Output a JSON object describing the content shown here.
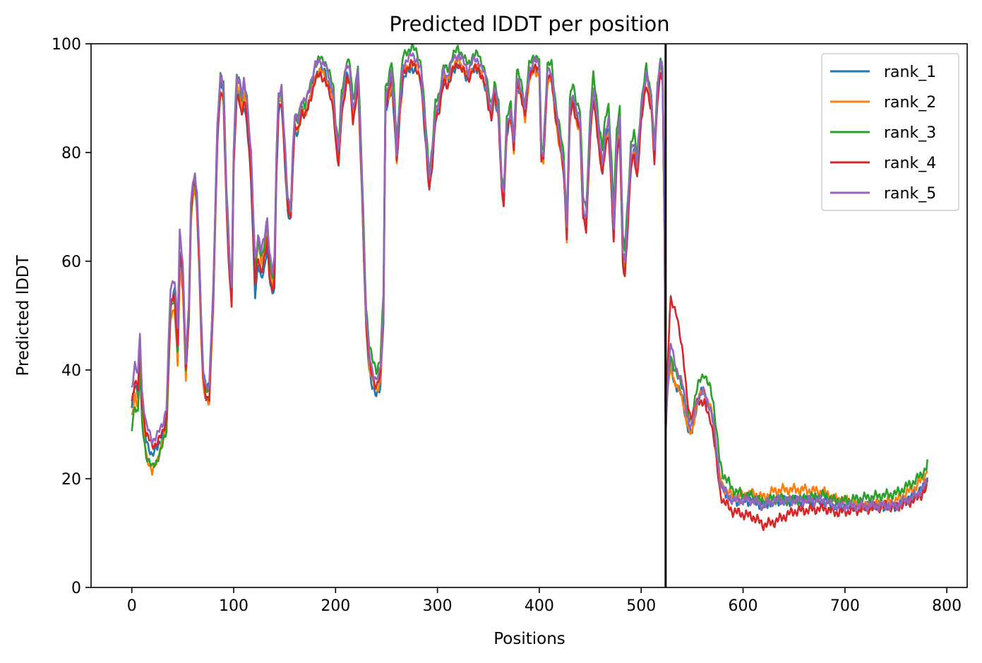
{
  "chart_data": {
    "type": "line",
    "title": "Predicted lDDT per position",
    "xlabel": "Positions",
    "ylabel": "Predicted lDDT",
    "xlim": [
      -40,
      820
    ],
    "ylim": [
      0,
      100
    ],
    "xticks": [
      0,
      100,
      200,
      300,
      400,
      500,
      600,
      700,
      800
    ],
    "yticks": [
      0,
      20,
      40,
      60,
      80,
      100
    ],
    "grid": false,
    "legend_position": "top-right",
    "vline": {
      "x": 524,
      "color": "#000000"
    },
    "keypoints": [
      [
        0,
        37
      ],
      [
        3,
        41
      ],
      [
        6,
        39
      ],
      [
        8,
        47
      ],
      [
        10,
        36
      ],
      [
        14,
        30
      ],
      [
        20,
        27
      ],
      [
        25,
        28
      ],
      [
        30,
        30
      ],
      [
        34,
        33
      ],
      [
        38,
        55
      ],
      [
        42,
        57
      ],
      [
        45,
        48
      ],
      [
        47,
        65
      ],
      [
        50,
        60
      ],
      [
        53,
        42
      ],
      [
        56,
        52
      ],
      [
        58,
        70
      ],
      [
        60,
        75
      ],
      [
        62,
        76
      ],
      [
        64,
        72
      ],
      [
        66,
        62
      ],
      [
        68,
        50
      ],
      [
        70,
        40
      ],
      [
        73,
        37
      ],
      [
        76,
        37
      ],
      [
        80,
        55
      ],
      [
        84,
        85
      ],
      [
        87,
        94
      ],
      [
        90,
        92
      ],
      [
        93,
        72
      ],
      [
        96,
        60
      ],
      [
        98,
        55
      ],
      [
        100,
        80
      ],
      [
        103,
        94
      ],
      [
        106,
        93
      ],
      [
        108,
        90
      ],
      [
        110,
        93
      ],
      [
        113,
        90
      ],
      [
        117,
        80
      ],
      [
        121,
        60
      ],
      [
        124,
        65
      ],
      [
        127,
        62
      ],
      [
        130,
        64
      ],
      [
        133,
        68
      ],
      [
        135,
        62
      ],
      [
        138,
        58
      ],
      [
        140,
        60
      ],
      [
        142,
        80
      ],
      [
        144,
        91
      ],
      [
        147,
        92
      ],
      [
        150,
        82
      ],
      [
        153,
        72
      ],
      [
        156,
        70
      ],
      [
        158,
        80
      ],
      [
        160,
        87
      ],
      [
        163,
        86
      ],
      [
        167,
        90
      ],
      [
        170,
        89
      ],
      [
        175,
        92
      ],
      [
        180,
        96
      ],
      [
        185,
        97
      ],
      [
        190,
        96
      ],
      [
        195,
        93
      ],
      [
        198,
        91
      ],
      [
        200,
        85
      ],
      [
        203,
        80
      ],
      [
        206,
        90
      ],
      [
        208,
        92
      ],
      [
        211,
        96
      ],
      [
        214,
        95
      ],
      [
        217,
        88
      ],
      [
        219,
        90
      ],
      [
        222,
        95
      ],
      [
        225,
        80
      ],
      [
        228,
        62
      ],
      [
        230,
        50
      ],
      [
        233,
        43
      ],
      [
        236,
        40
      ],
      [
        240,
        38
      ],
      [
        244,
        40
      ],
      [
        247,
        52
      ],
      [
        249,
        90
      ],
      [
        252,
        92
      ],
      [
        255,
        95
      ],
      [
        258,
        88
      ],
      [
        260,
        80
      ],
      [
        263,
        89
      ],
      [
        266,
        96
      ],
      [
        270,
        97
      ],
      [
        275,
        98
      ],
      [
        280,
        97
      ],
      [
        284,
        95
      ],
      [
        288,
        85
      ],
      [
        292,
        75
      ],
      [
        295,
        80
      ],
      [
        298,
        88
      ],
      [
        302,
        90
      ],
      [
        306,
        95
      ],
      [
        310,
        94
      ],
      [
        315,
        97
      ],
      [
        320,
        98
      ],
      [
        325,
        97
      ],
      [
        330,
        95
      ],
      [
        335,
        97
      ],
      [
        340,
        97
      ],
      [
        345,
        95
      ],
      [
        348,
        93
      ],
      [
        350,
        90
      ],
      [
        353,
        88
      ],
      [
        356,
        92
      ],
      [
        360,
        88
      ],
      [
        363,
        75
      ],
      [
        365,
        72
      ],
      [
        368,
        85
      ],
      [
        372,
        88
      ],
      [
        375,
        82
      ],
      [
        378,
        94
      ],
      [
        382,
        92
      ],
      [
        386,
        88
      ],
      [
        390,
        95
      ],
      [
        395,
        97
      ],
      [
        400,
        96
      ],
      [
        402,
        80
      ],
      [
        404,
        80
      ],
      [
        408,
        95
      ],
      [
        412,
        95
      ],
      [
        416,
        88
      ],
      [
        420,
        83
      ],
      [
        424,
        78
      ],
      [
        427,
        66
      ],
      [
        430,
        88
      ],
      [
        433,
        91
      ],
      [
        436,
        88
      ],
      [
        440,
        86
      ],
      [
        443,
        70
      ],
      [
        446,
        68
      ],
      [
        450,
        85
      ],
      [
        453,
        92
      ],
      [
        456,
        88
      ],
      [
        459,
        82
      ],
      [
        462,
        78
      ],
      [
        465,
        84
      ],
      [
        468,
        86
      ],
      [
        471,
        75
      ],
      [
        473,
        66
      ],
      [
        476,
        82
      ],
      [
        479,
        86
      ],
      [
        482,
        62
      ],
      [
        484,
        60
      ],
      [
        487,
        70
      ],
      [
        490,
        80
      ],
      [
        493,
        82
      ],
      [
        496,
        78
      ],
      [
        500,
        88
      ],
      [
        505,
        95
      ],
      [
        510,
        90
      ],
      [
        513,
        80
      ],
      [
        516,
        92
      ],
      [
        519,
        97
      ],
      [
        521,
        95
      ],
      [
        523,
        65
      ],
      [
        524,
        30
      ],
      [
        526,
        38
      ],
      [
        529,
        45
      ],
      [
        532,
        42
      ],
      [
        535,
        40
      ],
      [
        538,
        39
      ],
      [
        541,
        37
      ],
      [
        544,
        33
      ],
      [
        547,
        30
      ],
      [
        550,
        30
      ],
      [
        553,
        33
      ],
      [
        556,
        35
      ],
      [
        559,
        36
      ],
      [
        562,
        36
      ],
      [
        565,
        34
      ],
      [
        568,
        33
      ],
      [
        571,
        30
      ],
      [
        574,
        25
      ],
      [
        577,
        20
      ],
      [
        580,
        18
      ],
      [
        585,
        17
      ],
      [
        590,
        16
      ],
      [
        595,
        16
      ],
      [
        600,
        16
      ],
      [
        610,
        16
      ],
      [
        620,
        15
      ],
      [
        630,
        16
      ],
      [
        640,
        16
      ],
      [
        650,
        16
      ],
      [
        660,
        16
      ],
      [
        670,
        16
      ],
      [
        680,
        16
      ],
      [
        690,
        15
      ],
      [
        700,
        15
      ],
      [
        710,
        15
      ],
      [
        720,
        15
      ],
      [
        730,
        15
      ],
      [
        740,
        15
      ],
      [
        750,
        15
      ],
      [
        760,
        16
      ],
      [
        770,
        17
      ],
      [
        775,
        18
      ],
      [
        780,
        19
      ],
      [
        781,
        20
      ]
    ],
    "series": [
      {
        "name": "rank_1",
        "color": "#1f77b4",
        "offsets": [
          [
            0,
            -4
          ],
          [
            15,
            -3
          ],
          [
            30,
            -2
          ],
          [
            55,
            -3
          ],
          [
            65,
            0
          ],
          [
            95,
            -1
          ],
          [
            120,
            -6
          ],
          [
            135,
            -5
          ],
          [
            150,
            -3
          ],
          [
            200,
            -1
          ],
          [
            238,
            -3
          ],
          [
            300,
            -2
          ],
          [
            430,
            -1
          ],
          [
            480,
            -2
          ],
          [
            523,
            0
          ],
          [
            530,
            -4
          ],
          [
            560,
            0
          ],
          [
            600,
            0
          ],
          [
            700,
            0
          ],
          [
            781,
            0
          ]
        ]
      },
      {
        "name": "rank_2",
        "color": "#ff7f0e",
        "offsets": [
          [
            0,
            -6
          ],
          [
            10,
            -5
          ],
          [
            20,
            -6
          ],
          [
            30,
            -3
          ],
          [
            45,
            -7
          ],
          [
            55,
            -3
          ],
          [
            75,
            -3
          ],
          [
            95,
            -2
          ],
          [
            120,
            -2
          ],
          [
            200,
            -2
          ],
          [
            240,
            -2
          ],
          [
            300,
            -1
          ],
          [
            430,
            -2
          ],
          [
            480,
            -2
          ],
          [
            523,
            0
          ],
          [
            530,
            -4
          ],
          [
            560,
            0
          ],
          [
            600,
            1
          ],
          [
            640,
            2
          ],
          [
            660,
            2
          ],
          [
            700,
            1
          ],
          [
            720,
            0
          ],
          [
            781,
            2
          ]
        ]
      },
      {
        "name": "rank_3",
        "color": "#2ca02c",
        "offsets": [
          [
            0,
            -8
          ],
          [
            10,
            -6
          ],
          [
            20,
            -5
          ],
          [
            30,
            -4
          ],
          [
            45,
            -4
          ],
          [
            55,
            -2
          ],
          [
            80,
            0
          ],
          [
            95,
            1
          ],
          [
            120,
            -1
          ],
          [
            150,
            -1
          ],
          [
            200,
            1
          ],
          [
            240,
            2
          ],
          [
            300,
            1
          ],
          [
            400,
            1
          ],
          [
            450,
            2
          ],
          [
            470,
            3
          ],
          [
            500,
            1
          ],
          [
            523,
            0
          ],
          [
            530,
            -2
          ],
          [
            560,
            3
          ],
          [
            570,
            4
          ],
          [
            600,
            1
          ],
          [
            650,
            0
          ],
          [
            680,
            1
          ],
          [
            700,
            1
          ],
          [
            781,
            3
          ]
        ]
      },
      {
        "name": "rank_4",
        "color": "#d62728",
        "offsets": [
          [
            0,
            -3
          ],
          [
            10,
            -2
          ],
          [
            20,
            -1
          ],
          [
            35,
            -2
          ],
          [
            45,
            -4
          ],
          [
            55,
            -1
          ],
          [
            75,
            -2
          ],
          [
            95,
            -3
          ],
          [
            120,
            -4
          ],
          [
            135,
            -4
          ],
          [
            150,
            -2
          ],
          [
            200,
            -3
          ],
          [
            240,
            -1
          ],
          [
            300,
            -2
          ],
          [
            400,
            -1
          ],
          [
            450,
            -2
          ],
          [
            480,
            -3
          ],
          [
            520,
            -2
          ],
          [
            524,
            -2
          ],
          [
            528,
            8
          ],
          [
            535,
            10
          ],
          [
            545,
            3
          ],
          [
            560,
            -2
          ],
          [
            575,
            -2
          ],
          [
            590,
            -2
          ],
          [
            610,
            -3
          ],
          [
            630,
            -4
          ],
          [
            650,
            -2
          ],
          [
            700,
            -1
          ],
          [
            740,
            0
          ],
          [
            781,
            -1
          ]
        ]
      },
      {
        "name": "rank_5",
        "color": "#9467bd",
        "offsets": [
          [
            0,
            0
          ],
          [
            781,
            0
          ]
        ]
      }
    ]
  }
}
